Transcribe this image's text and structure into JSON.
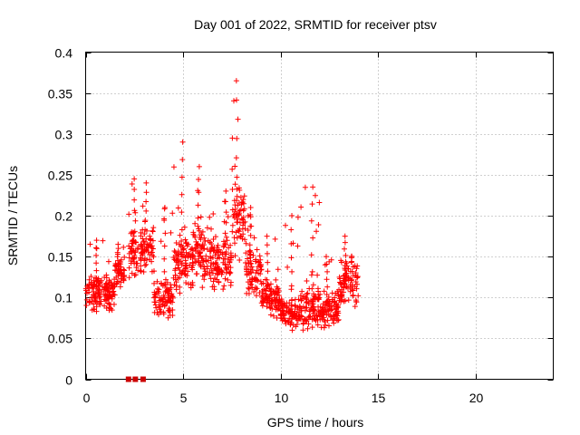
{
  "chart_data": {
    "type": "scatter",
    "title": "Day 001 of 2022, SRMTID for receiver ptsv",
    "xlabel": "GPS time / hours",
    "ylabel": "SRMTID / TECUs",
    "xlim": [
      0,
      24
    ],
    "ylim": [
      0,
      0.4
    ],
    "xticks": [
      0,
      5,
      10,
      15,
      20
    ],
    "xtick_labels": [
      "0",
      "5",
      "10",
      "15",
      "20"
    ],
    "yticks": [
      0,
      0.05,
      0.1,
      0.15,
      0.2,
      0.25,
      0.3,
      0.35,
      0.4
    ],
    "ytick_labels": [
      "0",
      "0.05",
      "0.1",
      "0.15",
      "0.2",
      "0.25",
      "0.3",
      "0.35",
      "0.4"
    ],
    "grid": true,
    "marker": "plus",
    "color": "#ff0000",
    "zero_marker_color": "#cc0000",
    "segments": [
      {
        "start": 0.0,
        "end": 1.5,
        "mid": 0.105,
        "spread": 0.03,
        "peak": 0.17
      },
      {
        "start": 1.5,
        "end": 2.0,
        "mid": 0.13,
        "spread": 0.03,
        "peak": 0.165
      },
      {
        "start": 2.2,
        "end": 2.7,
        "mid": 0.155,
        "spread": 0.05,
        "peak": 0.245
      },
      {
        "start": 2.8,
        "end": 3.5,
        "mid": 0.16,
        "spread": 0.04,
        "peak": 0.24
      },
      {
        "start": 3.5,
        "end": 4.5,
        "mid": 0.1,
        "spread": 0.035,
        "peak": 0.21
      },
      {
        "start": 4.5,
        "end": 5.5,
        "mid": 0.14,
        "spread": 0.05,
        "peak": 0.29
      },
      {
        "start": 5.5,
        "end": 6.5,
        "mid": 0.15,
        "spread": 0.05,
        "peak": 0.26
      },
      {
        "start": 6.5,
        "end": 7.5,
        "mid": 0.14,
        "spread": 0.05,
        "peak": 0.23
      },
      {
        "start": 7.5,
        "end": 8.2,
        "mid": 0.2,
        "spread": 0.07,
        "peak": 0.365
      },
      {
        "start": 8.2,
        "end": 9.0,
        "mid": 0.13,
        "spread": 0.04,
        "peak": 0.21
      },
      {
        "start": 9.0,
        "end": 10.0,
        "mid": 0.1,
        "spread": 0.03,
        "peak": 0.175
      },
      {
        "start": 10.0,
        "end": 11.0,
        "mid": 0.08,
        "spread": 0.025,
        "peak": 0.2
      },
      {
        "start": 11.0,
        "end": 12.0,
        "mid": 0.09,
        "spread": 0.04,
        "peak": 0.235
      },
      {
        "start": 12.0,
        "end": 13.0,
        "mid": 0.085,
        "spread": 0.03,
        "peak": 0.15
      },
      {
        "start": 13.0,
        "end": 14.0,
        "mid": 0.12,
        "spread": 0.04,
        "peak": 0.175
      }
    ],
    "zero_points": [
      2.2,
      2.55,
      2.95
    ]
  }
}
